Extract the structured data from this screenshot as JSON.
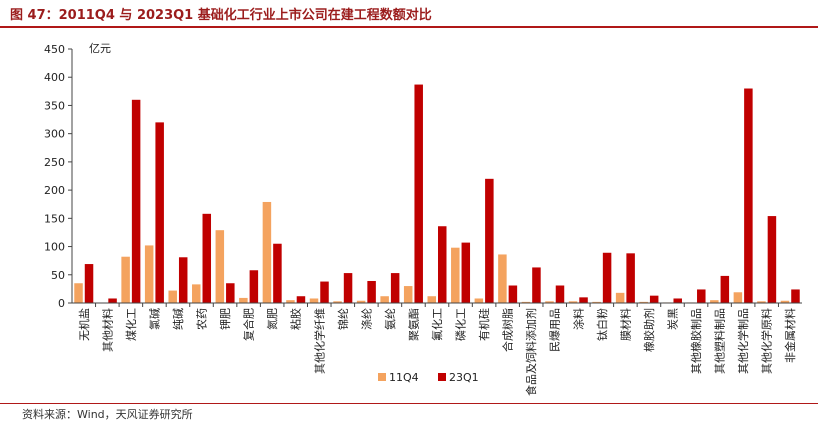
{
  "title": "图 47：2011Q4 与 2023Q1 基础化工行业上市公司在建工程数额对比",
  "source": "资料来源：Wind，天风证券研究所",
  "colors": {
    "series1": "#f4a35f",
    "series2": "#c00000",
    "title": "#9b1c1c",
    "rule": "#b01818"
  },
  "chart_data": {
    "type": "bar",
    "unit_label": "亿元",
    "ylim": [
      0,
      450
    ],
    "yticks": [
      0,
      50,
      100,
      150,
      200,
      250,
      300,
      350,
      400,
      450
    ],
    "legend_position": "bottom-center",
    "categories": [
      "无机盐",
      "其他材料",
      "煤化工",
      "氯碱",
      "纯碱",
      "农药",
      "钾肥",
      "复合肥",
      "氮肥",
      "粘胶",
      "其他化学纤维",
      "锦纶",
      "涤纶",
      "氨纶",
      "聚氨酯",
      "氟化工",
      "磷化工",
      "有机硅",
      "合成树脂",
      "食品及饲料添加剂",
      "民爆用品",
      "涂料",
      "钛白粉",
      "膜材料",
      "橡胶助剂",
      "炭黑",
      "其他橡胶制品",
      "其他塑料制品",
      "其他化学制品",
      "其他化学原料",
      "非金属材料"
    ],
    "series": [
      {
        "name": "11Q4",
        "values": [
          35,
          0,
          82,
          102,
          22,
          33,
          129,
          9,
          179,
          5,
          8,
          3,
          4,
          12,
          30,
          12,
          98,
          8,
          86,
          2,
          3,
          3,
          2,
          18,
          2,
          1,
          1,
          5,
          19,
          3,
          4
        ]
      },
      {
        "name": "23Q1",
        "values": [
          69,
          8,
          360,
          320,
          81,
          158,
          35,
          58,
          105,
          12,
          38,
          53,
          39,
          53,
          387,
          136,
          107,
          220,
          31,
          63,
          31,
          10,
          89,
          88,
          13,
          8,
          24,
          48,
          380,
          154,
          24
        ]
      }
    ]
  }
}
